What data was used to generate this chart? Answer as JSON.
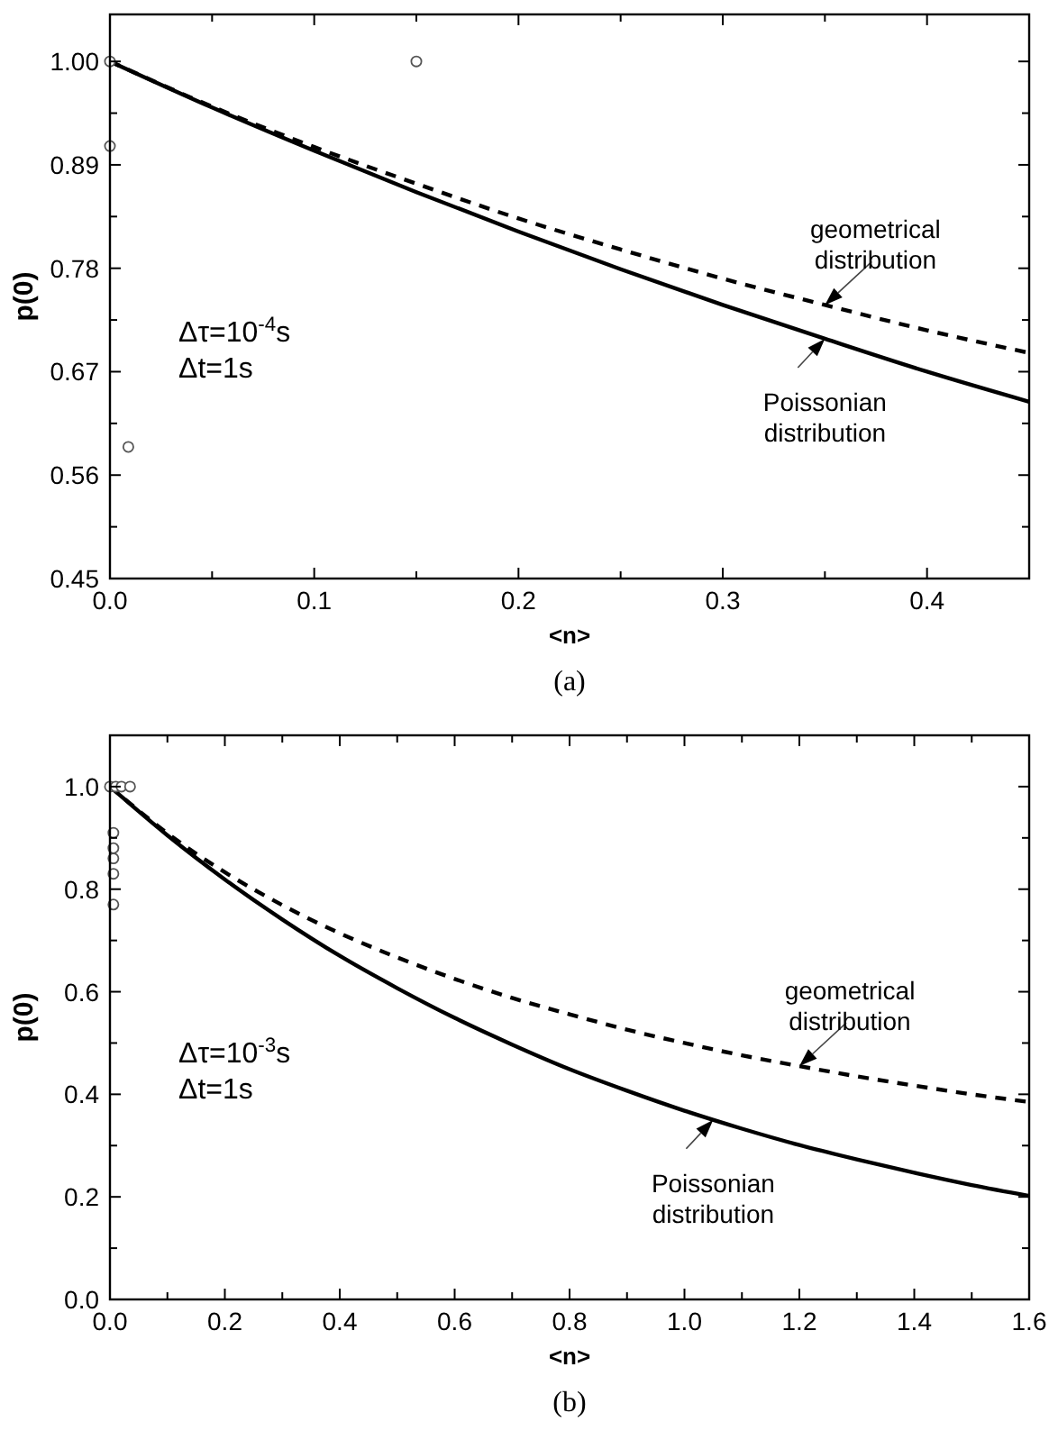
{
  "chart_data": [
    {
      "type": "line",
      "title": "(a)",
      "xlabel": "<n>",
      "ylabel": "p(0)",
      "grid": false,
      "xlim": [
        0,
        0.45
      ],
      "ylim": [
        0.45,
        1.05
      ],
      "xticks": [
        {
          "value": 0,
          "label": "0.0"
        },
        {
          "value": 0.05,
          "label": null
        },
        0.1,
        {
          "value": 0.15,
          "label": null
        },
        0.2,
        {
          "value": 0.25,
          "label": null
        },
        0.3,
        {
          "value": 0.35,
          "label": null
        },
        0.4,
        {
          "value": 0.45,
          "label": null
        }
      ],
      "yticks": [
        0.45,
        {
          "value": 0.505,
          "label": null
        },
        0.56,
        {
          "value": 0.615,
          "label": null
        },
        0.67,
        {
          "value": 0.725,
          "label": null
        },
        0.78,
        {
          "value": 0.835,
          "label": null
        },
        0.89,
        {
          "value": 0.945,
          "label": null
        },
        {
          "value": 1.0,
          "label": "1.00"
        }
      ],
      "series": [
        {
          "type": "line",
          "color": "#000000",
          "line_style": "dashed",
          "marker": "none",
          "x": [
            0,
            0.05,
            0.1,
            0.15,
            0.2,
            0.25,
            0.3,
            0.35,
            0.4,
            0.45
          ],
          "values": [
            1,
            0.952,
            0.909,
            0.87,
            0.833,
            0.8,
            0.769,
            0.741,
            0.714,
            0.69
          ]
        },
        {
          "type": "line",
          "color": "#000000",
          "line_style": "solid",
          "marker": "none",
          "x": [
            0,
            0.05,
            0.1,
            0.15,
            0.2,
            0.25,
            0.3,
            0.35,
            0.4,
            0.45
          ],
          "values": [
            1,
            0.951,
            0.905,
            0.861,
            0.819,
            0.779,
            0.741,
            0.705,
            0.67,
            0.638
          ]
        },
        {
          "type": "scatter",
          "color": "#555555",
          "marker": "circle",
          "x": [
            0,
            0,
            0.009,
            0.15
          ],
          "values": [
            1.0,
            0.91,
            0.59,
            1.0
          ]
        }
      ],
      "annotations": [
        {
          "text": "geometrical distribution",
          "x": 0.35,
          "y": 0.741
        },
        {
          "text": "Poissonian distribution",
          "x": 0.35,
          "y": 0.705
        },
        "Δτ=10$^{-4}$s",
        "Δt=1s"
      ]
    },
    {
      "type": "line",
      "title": "(b)",
      "xlabel": "<n>",
      "ylabel": "p(0)",
      "grid": false,
      "xlim": [
        0,
        1.6
      ],
      "ylim": [
        0,
        1.1
      ],
      "xticks": [
        {
          "value": 0,
          "label": "0.0"
        },
        {
          "value": 0.1,
          "label": null
        },
        {
          "value": 0.2,
          "label": "0.2"
        },
        {
          "value": 0.3,
          "label": null
        },
        {
          "value": 0.4,
          "label": "0.4"
        },
        {
          "value": 0.5,
          "label": null
        },
        {
          "value": 0.6,
          "label": "0.6"
        },
        {
          "value": 0.7,
          "label": null
        },
        {
          "value": 0.8,
          "label": "0.8"
        },
        {
          "value": 0.9,
          "label": null
        },
        {
          "value": 1.0,
          "label": "1.0"
        },
        {
          "value": 1.1,
          "label": null
        },
        {
          "value": 1.2,
          "label": "1.2"
        },
        {
          "value": 1.3,
          "label": null
        },
        {
          "value": 1.4,
          "label": "1.4"
        },
        {
          "value": 1.5,
          "label": null
        },
        {
          "value": 1.6,
          "label": "1.6"
        }
      ],
      "yticks": [
        {
          "value": 0,
          "label": "0.0"
        },
        {
          "value": 0.1,
          "label": null
        },
        {
          "value": 0.2,
          "label": "0.2"
        },
        {
          "value": 0.3,
          "label": null
        },
        {
          "value": 0.4,
          "label": "0.4"
        },
        {
          "value": 0.5,
          "label": null
        },
        {
          "value": 0.6,
          "label": "0.6"
        },
        {
          "value": 0.7,
          "label": null
        },
        {
          "value": 0.8,
          "label": "0.8"
        },
        {
          "value": 0.9,
          "label": null
        },
        {
          "value": 1.0,
          "label": "1.0"
        }
      ],
      "series": [
        {
          "type": "line",
          "color": "#000000",
          "line_style": "dashed",
          "marker": "none",
          "x": [
            0,
            0.1,
            0.2,
            0.3,
            0.4,
            0.5,
            0.6,
            0.7,
            0.8,
            0.9,
            1.0,
            1.1,
            1.2,
            1.3,
            1.4,
            1.5,
            1.6
          ],
          "values": [
            1,
            0.909,
            0.833,
            0.769,
            0.714,
            0.667,
            0.625,
            0.588,
            0.556,
            0.526,
            0.5,
            0.476,
            0.455,
            0.435,
            0.417,
            0.4,
            0.385
          ]
        },
        {
          "type": "line",
          "color": "#000000",
          "line_style": "solid",
          "marker": "none",
          "x": [
            0,
            0.1,
            0.2,
            0.3,
            0.4,
            0.5,
            0.6,
            0.7,
            0.8,
            0.9,
            1.0,
            1.1,
            1.2,
            1.3,
            1.4,
            1.5,
            1.6
          ],
          "values": [
            1,
            0.905,
            0.819,
            0.741,
            0.67,
            0.607,
            0.549,
            0.497,
            0.449,
            0.407,
            0.368,
            0.333,
            0.301,
            0.273,
            0.247,
            0.223,
            0.202
          ]
        },
        {
          "type": "scatter",
          "color": "#555555",
          "marker": "circle",
          "x": [
            0,
            0.01,
            0.02,
            0.035,
            0.006,
            0.006,
            0.006,
            0.006,
            0.006
          ],
          "values": [
            1.0,
            1.0,
            1.0,
            1.0,
            0.91,
            0.88,
            0.86,
            0.83,
            0.77
          ]
        }
      ],
      "annotations": [
        {
          "text": "geometrical distribution",
          "x": 1.2,
          "y": 0.455
        },
        {
          "text": "Poissonian distribution",
          "x": 1.05,
          "y": 0.35
        },
        "Δτ=10$^{-3}$s",
        "Δt=1s"
      ]
    }
  ]
}
